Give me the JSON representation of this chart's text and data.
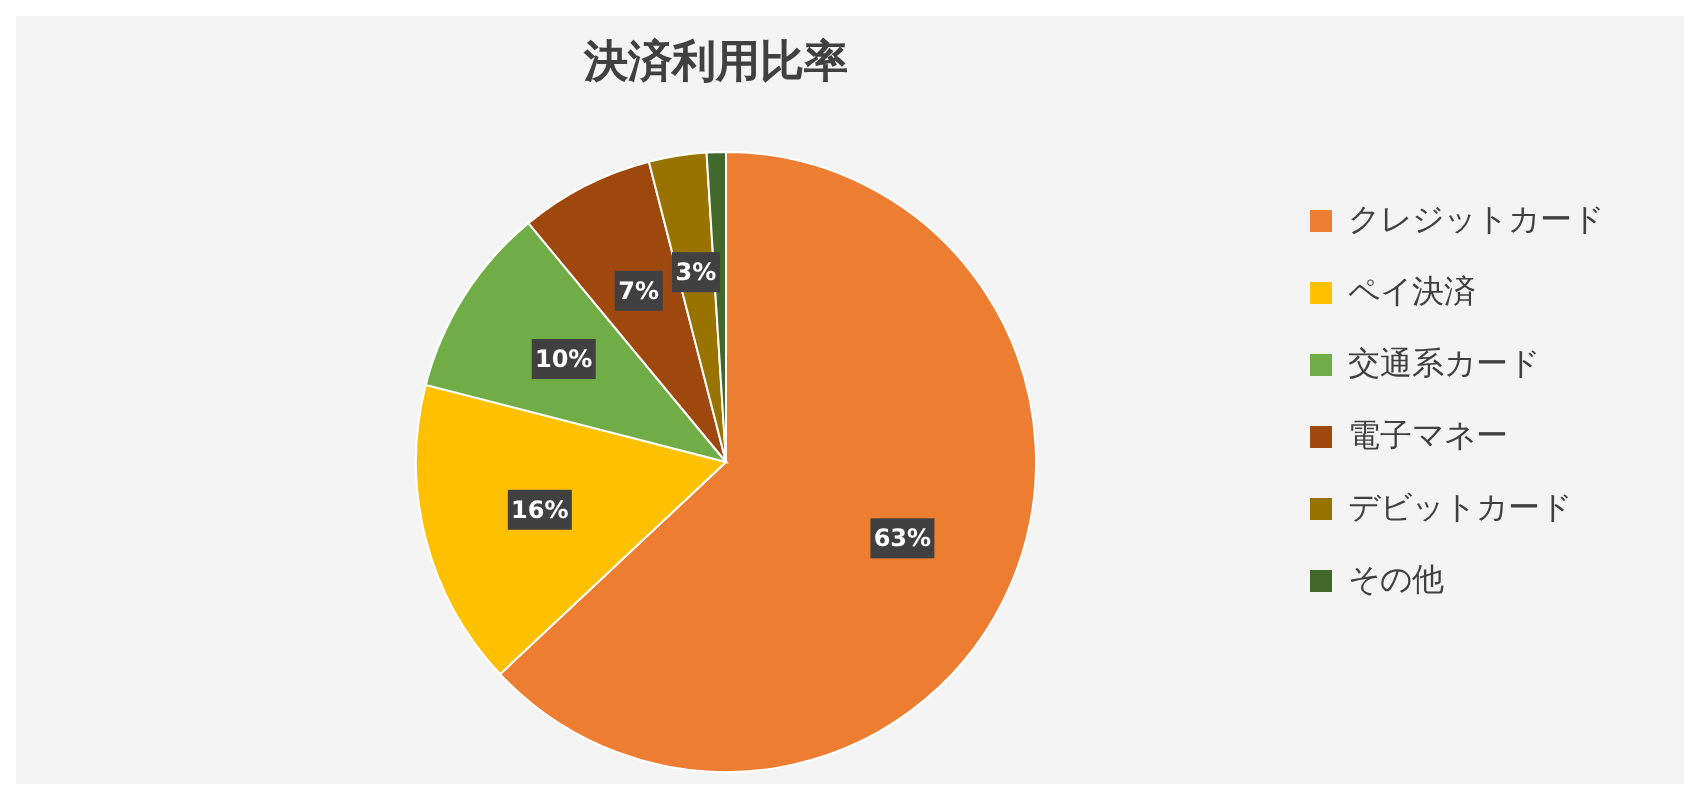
{
  "chart_data": {
    "type": "pie",
    "title": "決済利用比率",
    "categories": [
      "クレジットカード",
      "ペイ決済",
      "交通系カード",
      "電子マネー",
      "デビットカード",
      "その他"
    ],
    "values": [
      63,
      16,
      10,
      7,
      3,
      1
    ],
    "colors": [
      "#ed7d31",
      "#ffc000",
      "#70ad47",
      "#9e480e",
      "#997300",
      "#43682b"
    ],
    "value_labels": [
      "63%",
      "16%",
      "10%",
      "7%",
      "3%",
      null
    ],
    "legend": "right"
  }
}
